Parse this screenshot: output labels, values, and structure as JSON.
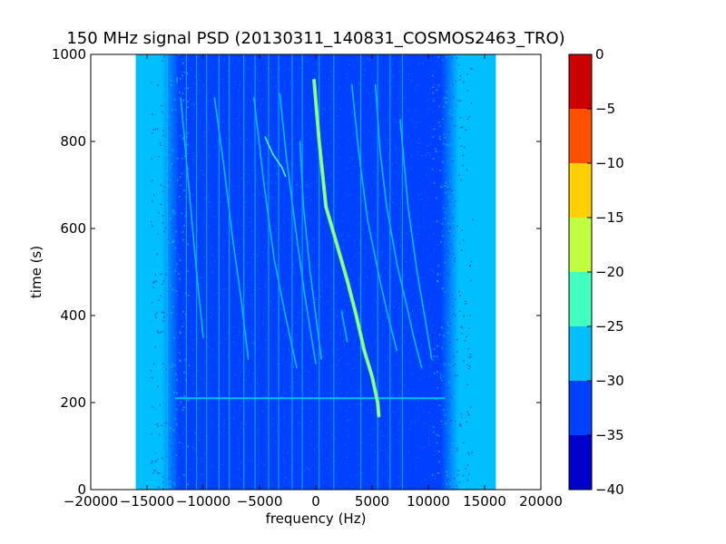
{
  "chart_data": {
    "type": "heatmap",
    "title": "150 MHz signal PSD (20130311_140831_COSMOS2463_TRO)",
    "xlabel": "frequency (Hz)",
    "ylabel": "time (s)",
    "xlim": [
      -20000,
      20000
    ],
    "ylim": [
      0,
      1000
    ],
    "x_ticks": [
      -20000,
      -15000,
      -10000,
      -5000,
      0,
      5000,
      10000,
      15000,
      20000
    ],
    "x_tick_labels": [
      "−20000",
      "−15000",
      "−10000",
      "−5000",
      "0",
      "5000",
      "10000",
      "15000",
      "20000"
    ],
    "y_ticks": [
      0,
      200,
      400,
      600,
      800,
      1000
    ],
    "y_tick_labels": [
      "0",
      "200",
      "400",
      "600",
      "800",
      "1000"
    ],
    "data_extent": {
      "freq": [
        -16000,
        16000
      ],
      "time": [
        0,
        1000
      ]
    },
    "background_level": -32.5,
    "edge_level": -27.5,
    "colorbar": {
      "levels": [
        -40,
        -35,
        -30,
        -25,
        -20,
        -15,
        -10,
        -5,
        0
      ],
      "tick_labels": [
        "−40",
        "−35",
        "−30",
        "−25",
        "−20",
        "−15",
        "−10",
        "−5",
        "0"
      ],
      "colors": [
        "#0000cd",
        "#0040ff",
        "#00bfff",
        "#40ffbf",
        "#bfff40",
        "#ffcf00",
        "#ff5000",
        "#cd0000"
      ]
    },
    "series": [
      {
        "level": -17.5,
        "points": [
          [
            -150,
            940
          ],
          [
            300,
            800
          ],
          [
            900,
            650
          ],
          [
            1800,
            570
          ],
          [
            2800,
            480
          ],
          [
            3600,
            400
          ],
          [
            4300,
            320
          ],
          [
            5000,
            260
          ],
          [
            5500,
            200
          ],
          [
            5600,
            170
          ]
        ]
      },
      {
        "level": -27.5,
        "points": [
          [
            -3200,
            910
          ],
          [
            -2600,
            760
          ],
          [
            -1800,
            600
          ],
          [
            -1000,
            450
          ],
          [
            -200,
            320
          ],
          [
            0,
            290
          ]
        ]
      },
      {
        "level": -27.5,
        "points": [
          [
            -1400,
            800
          ],
          [
            -1100,
            650
          ],
          [
            -500,
            500
          ],
          [
            100,
            380
          ],
          [
            500,
            300
          ]
        ]
      },
      {
        "level": -27.5,
        "points": [
          [
            -9000,
            900
          ],
          [
            -8200,
            750
          ],
          [
            -7400,
            580
          ],
          [
            -6600,
            430
          ],
          [
            -6000,
            300
          ]
        ]
      },
      {
        "level": -27.5,
        "points": [
          [
            -5500,
            900
          ],
          [
            -4600,
            700
          ],
          [
            -3700,
            530
          ],
          [
            -2700,
            400
          ],
          [
            -1700,
            280
          ]
        ]
      },
      {
        "level": -27.5,
        "points": [
          [
            3200,
            930
          ],
          [
            3800,
            780
          ],
          [
            4600,
            620
          ],
          [
            5700,
            480
          ],
          [
            6400,
            400
          ],
          [
            7200,
            320
          ]
        ]
      },
      {
        "level": -27.5,
        "points": [
          [
            5300,
            930
          ],
          [
            5700,
            780
          ],
          [
            6300,
            650
          ],
          [
            7200,
            520
          ],
          [
            8100,
            420
          ],
          [
            8800,
            340
          ],
          [
            9400,
            280
          ]
        ]
      },
      {
        "level": -25,
        "points": [
          [
            -4500,
            810
          ],
          [
            -3800,
            770
          ],
          [
            -3000,
            740
          ],
          [
            -2700,
            720
          ]
        ]
      },
      {
        "level": -27.5,
        "points": [
          [
            -12000,
            900
          ],
          [
            -11300,
            700
          ],
          [
            -10600,
            500
          ],
          [
            -10000,
            350
          ]
        ]
      },
      {
        "level": -27.5,
        "points": [
          [
            7500,
            850
          ],
          [
            8200,
            650
          ],
          [
            9000,
            500
          ],
          [
            9800,
            380
          ],
          [
            10300,
            300
          ]
        ]
      },
      {
        "level": -27.5,
        "points": [
          [
            2300,
            410
          ],
          [
            2500,
            380
          ],
          [
            2800,
            340
          ]
        ]
      }
    ],
    "vertical_lines": [
      -13200,
      -11500,
      -10600,
      -9700,
      -8600,
      -7700,
      -6400,
      -5400,
      -4200,
      -3300,
      -2100,
      -1200,
      300,
      1600,
      4000,
      5500,
      6600,
      7700
    ],
    "horizontal_band": {
      "time": 210,
      "freq": [
        -12500,
        11500
      ],
      "level": -27.5
    }
  }
}
